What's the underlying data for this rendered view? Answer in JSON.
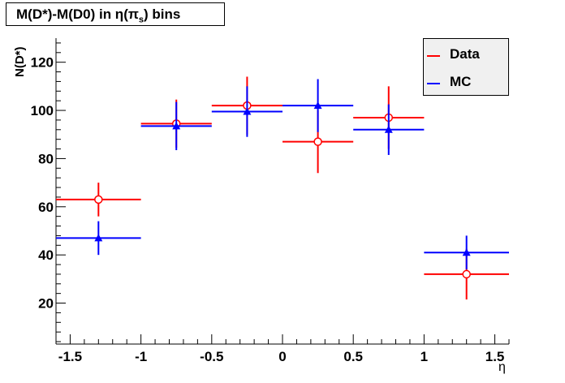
{
  "title": "M(D*)-M(D0) in η(π_s) bins",
  "title_parts": {
    "prefix": "M(D*)-M(D0) in  η(π",
    "sub": "s",
    "suffix": ") bins"
  },
  "chart_data": {
    "type": "scatter",
    "xlabel": "η",
    "ylabel": "N(D*)",
    "xlim": [
      -1.6,
      1.6
    ],
    "ylim": [
      3,
      130
    ],
    "xticks": [
      -1.5,
      -1,
      -0.5,
      0,
      0.5,
      1,
      1.5
    ],
    "xtick_labels": [
      "-1.5",
      "-1",
      "-0.5",
      "0",
      "0.5",
      "1",
      "1.5"
    ],
    "yticks": [
      20,
      40,
      60,
      80,
      100,
      120
    ],
    "ytick_labels": [
      "20",
      "40",
      "60",
      "80",
      "100",
      "120"
    ],
    "grid": false,
    "legend_position": "top-right",
    "series": [
      {
        "name": "Data",
        "color": "#ff0000",
        "marker": "open-circle",
        "points": [
          {
            "x": -1.3,
            "y": 63,
            "xerr": [
              0.3,
              0.3
            ],
            "yerr": 7
          },
          {
            "x": -0.75,
            "y": 94.5,
            "xerr": [
              0.25,
              0.25
            ],
            "yerr": 10
          },
          {
            "x": -0.25,
            "y": 102,
            "xerr": [
              0.25,
              0.25
            ],
            "yerr": 12
          },
          {
            "x": 0.25,
            "y": 87,
            "xerr": [
              0.25,
              0.25
            ],
            "yerr": 13
          },
          {
            "x": 0.75,
            "y": 97,
            "xerr": [
              0.25,
              0.25
            ],
            "yerr": 13
          },
          {
            "x": 1.3,
            "y": 32,
            "xerr": [
              0.3,
              0.3
            ],
            "yerr": 10.5
          }
        ]
      },
      {
        "name": "MC",
        "color": "#0000ff",
        "marker": "triangle",
        "points": [
          {
            "x": -1.3,
            "y": 47,
            "xerr": [
              0.3,
              0.3
            ],
            "yerr": 7
          },
          {
            "x": -0.75,
            "y": 93.5,
            "xerr": [
              0.25,
              0.25
            ],
            "yerr": 10
          },
          {
            "x": -0.25,
            "y": 99.5,
            "xerr": [
              0.25,
              0.25
            ],
            "yerr": 10.5
          },
          {
            "x": 0.25,
            "y": 102,
            "xerr": [
              0.25,
              0.25
            ],
            "yerr": 11
          },
          {
            "x": 0.75,
            "y": 92,
            "xerr": [
              0.25,
              0.25
            ],
            "yerr": 10.5
          },
          {
            "x": 1.3,
            "y": 41,
            "xerr": [
              0.3,
              0.3
            ],
            "yerr": 7
          }
        ]
      }
    ]
  }
}
